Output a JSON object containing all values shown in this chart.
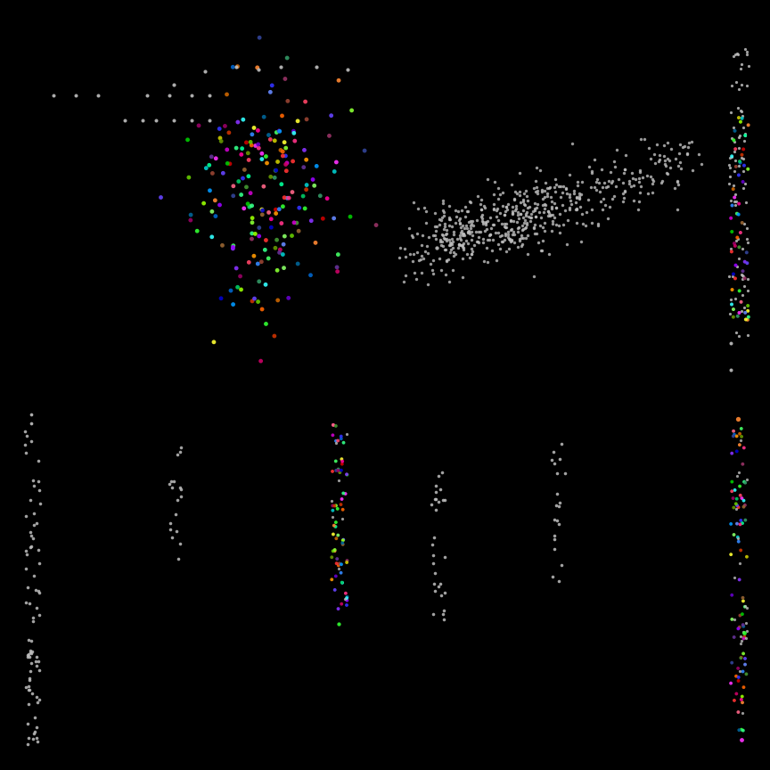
{
  "background_color": "#000000",
  "gray": "#c0c0c0",
  "alpha": 0.9,
  "ps": 12,
  "figsize": [
    8.64,
    8.64
  ],
  "dpi": 100,
  "seed": 42,
  "colors": [
    "#FF3333",
    "#33FF33",
    "#3333FF",
    "#FF33FF",
    "#33FFFF",
    "#FFFF33",
    "#FF8833",
    "#8833FF",
    "#33FF88",
    "#FF3388",
    "#88FF33",
    "#3388FF",
    "#FF6600",
    "#006699",
    "#990066",
    "#669900",
    "#CC3300",
    "#993366",
    "#FF6688",
    "#88FF66",
    "#6688FF",
    "#996633",
    "#339966",
    "#663399",
    "#FF4466",
    "#44FF66",
    "#6644FF",
    "#994433",
    "#449933",
    "#334499",
    "#CC0000",
    "#00CC00",
    "#0000CC",
    "#CC00CC",
    "#00CCCC",
    "#CCCC00",
    "#CC6600",
    "#66CC00",
    "#0066CC",
    "#CC0066",
    "#00CC66",
    "#6600CC",
    "#FF9900",
    "#9900FF",
    "#00FF99",
    "#FF0099",
    "#99FF00",
    "#0099FF"
  ]
}
